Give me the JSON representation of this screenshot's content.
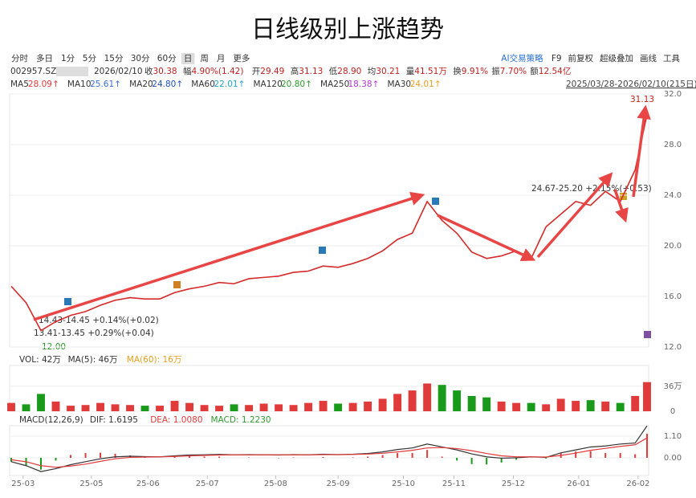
{
  "title": "日线级别上涨趋势",
  "toolbar": {
    "tabs": [
      "分时",
      "多日",
      "1分",
      "5分",
      "15分",
      "30分",
      "60分",
      "日",
      "周",
      "月",
      "更多"
    ],
    "active": 7,
    "tools": [
      "AI交易策略",
      "F9",
      "前复权",
      "超级叠加",
      "画线",
      "工具"
    ]
  },
  "info": {
    "code": "002957.SZ",
    "date": "2026/02/10",
    "items": [
      {
        "label": "收",
        "value": "30.38"
      },
      {
        "label": "幅",
        "value": "4.90%(1.42)"
      },
      {
        "label": "开",
        "value": "29.49"
      },
      {
        "label": "高",
        "value": "31.13"
      },
      {
        "label": "低",
        "value": "28.90"
      },
      {
        "label": "均",
        "value": "30.21"
      },
      {
        "label": "量",
        "value": "41.51万"
      },
      {
        "label": "换",
        "value": "9.91%"
      },
      {
        "label": "振",
        "value": "7.70%"
      },
      {
        "label": "额",
        "value": "12.54亿"
      }
    ],
    "ma": [
      {
        "name": "MA5",
        "value": "28.09↑",
        "color": "#e03a3a"
      },
      {
        "name": "MA10",
        "value": "25.61↑",
        "color": "#3a6fd8"
      },
      {
        "name": "MA20",
        "value": "24.80↑",
        "color": "#1f4fc0"
      },
      {
        "name": "MA60",
        "value": "22.01↑",
        "color": "#22a5c5"
      },
      {
        "name": "MA120",
        "value": "20.80↑",
        "color": "#2e9a2e"
      },
      {
        "name": "MA250",
        "value": "18.38↑",
        "color": "#b03ad0"
      },
      {
        "name": "MA30",
        "value": "24.01↑",
        "color": "#e8a020"
      }
    ],
    "range": "2025/03/28-2026/02/10(215日)"
  },
  "chart_data": [
    {
      "type": "line",
      "color": "#d42a2a",
      "x": [
        0,
        5,
        10,
        15,
        20,
        25,
        30,
        35,
        40,
        45,
        50,
        55,
        60,
        65,
        70,
        75,
        80,
        85,
        90,
        95,
        100,
        105,
        110,
        115,
        120,
        125,
        130,
        135,
        140,
        145,
        150,
        155,
        160,
        165,
        170,
        175,
        180,
        185,
        190,
        195,
        200,
        205,
        210,
        214
      ],
      "values": [
        16.8,
        15.5,
        13.3,
        14.0,
        14.5,
        14.8,
        15.3,
        15.7,
        15.9,
        15.8,
        15.8,
        16.3,
        16.6,
        16.8,
        17.1,
        17.0,
        17.4,
        17.5,
        17.6,
        17.9,
        18.0,
        18.4,
        18.3,
        18.6,
        19.0,
        19.6,
        20.5,
        21.0,
        23.5,
        22.0,
        21.0,
        19.5,
        19.0,
        19.2,
        19.6,
        19.0,
        21.5,
        22.5,
        23.5,
        23.2,
        24.3,
        23.5,
        26.0,
        30.38
      ],
      "xlim": [
        0,
        214
      ],
      "ylim": [
        12,
        32
      ],
      "yticks": [
        {
          "value": 12,
          "label": "12.0"
        },
        {
          "value": 16,
          "label": "16.0"
        },
        {
          "value": 20,
          "label": "20.0"
        },
        {
          "value": 24,
          "label": "24.0"
        },
        {
          "value": 28,
          "label": "28.0"
        },
        {
          "value": 32,
          "label": "32.0"
        }
      ],
      "xticks": [
        {
          "value": 4,
          "label": "25-03"
        },
        {
          "value": 27,
          "label": "25-05"
        },
        {
          "value": 46,
          "label": "25-06"
        },
        {
          "value": 66,
          "label": "25-07"
        },
        {
          "value": 89,
          "label": "25-08"
        },
        {
          "value": 110,
          "label": "25-09"
        },
        {
          "value": 132,
          "label": "25-10"
        },
        {
          "value": 149,
          "label": "25-11"
        },
        {
          "value": 169,
          "label": "25-12"
        },
        {
          "value": 191,
          "label": "26-01"
        },
        {
          "value": 211,
          "label": "26-02"
        }
      ],
      "annotations": [
        "31.13",
        "24.67-25.20 +2.15%(+0.53)",
        "14.43-14.45 +0.14%(+0.02)",
        "13.41-13.45 +0.29%(+0.04)",
        "12.00"
      ]
    },
    {
      "type": "bar",
      "header": [
        "VOL: 42万",
        "MA(5): 46万",
        "MA(60): 16万"
      ],
      "color": "#1a9a1a",
      "up_color": "#e03a3a",
      "x": [
        0,
        5,
        10,
        15,
        20,
        25,
        30,
        35,
        40,
        45,
        50,
        55,
        60,
        65,
        70,
        75,
        80,
        85,
        90,
        95,
        100,
        105,
        110,
        115,
        120,
        125,
        130,
        135,
        140,
        145,
        150,
        155,
        160,
        165,
        170,
        175,
        180,
        185,
        190,
        195,
        200,
        205,
        210,
        214
      ],
      "values": [
        12,
        10,
        25,
        14,
        8,
        9,
        12,
        10,
        9,
        8,
        8,
        15,
        12,
        9,
        8,
        10,
        9,
        11,
        10,
        9,
        12,
        15,
        11,
        12,
        14,
        18,
        25,
        30,
        40,
        38,
        30,
        22,
        20,
        14,
        12,
        12,
        10,
        18,
        15,
        16,
        14,
        12,
        22,
        42
      ],
      "xlim": [
        0,
        214
      ],
      "ylim": [
        0,
        66
      ],
      "yticks": [
        0,
        {
          "value": 36,
          "label": "36万"
        }
      ]
    },
    {
      "type": "macd",
      "header": [
        "MACD(12,26,9)",
        "DIF: 1.6195",
        "DEA: 1.0080",
        "MACD: 1.2230"
      ],
      "x": [
        0,
        5,
        10,
        15,
        20,
        25,
        30,
        35,
        40,
        45,
        50,
        55,
        60,
        65,
        70,
        75,
        80,
        85,
        90,
        95,
        100,
        105,
        110,
        115,
        120,
        125,
        130,
        135,
        140,
        145,
        150,
        155,
        160,
        165,
        170,
        175,
        180,
        185,
        190,
        195,
        200,
        205,
        210,
        214
      ],
      "series": [
        {
          "color": "#333333",
          "values": [
            -0.2,
            -0.4,
            -0.7,
            -0.55,
            -0.35,
            -0.2,
            -0.05,
            0.05,
            0.08,
            0.06,
            0.05,
            0.1,
            0.14,
            0.15,
            0.17,
            0.15,
            0.16,
            0.15,
            0.14,
            0.16,
            0.15,
            0.18,
            0.16,
            0.18,
            0.22,
            0.3,
            0.42,
            0.5,
            0.7,
            0.55,
            0.4,
            0.2,
            0.05,
            -0.02,
            0.0,
            0.05,
            0.02,
            0.25,
            0.4,
            0.55,
            0.6,
            0.7,
            0.75,
            1.62
          ]
        },
        {
          "color": "#e03a3a",
          "values": [
            -0.1,
            -0.2,
            -0.4,
            -0.48,
            -0.42,
            -0.32,
            -0.18,
            -0.05,
            0.02,
            0.04,
            0.05,
            0.07,
            0.1,
            0.12,
            0.14,
            0.15,
            0.15,
            0.15,
            0.15,
            0.15,
            0.15,
            0.16,
            0.16,
            0.17,
            0.19,
            0.23,
            0.3,
            0.38,
            0.5,
            0.52,
            0.47,
            0.36,
            0.22,
            0.1,
            0.05,
            0.05,
            0.04,
            0.12,
            0.24,
            0.38,
            0.48,
            0.58,
            0.66,
            1.01
          ]
        }
      ],
      "bars": {
        "up_color": "#e03a3a",
        "down_color": "#1a9a1a",
        "values": [
          -0.2,
          -0.4,
          -0.6,
          -0.14,
          0.14,
          0.24,
          0.26,
          0.2,
          0.12,
          0.04,
          0,
          0.06,
          0.08,
          0.06,
          0.06,
          0,
          0.02,
          0,
          -0.02,
          0.02,
          0,
          0.04,
          0,
          0.02,
          0.06,
          0.14,
          0.24,
          0.24,
          0.4,
          0.06,
          -0.14,
          -0.32,
          -0.34,
          -0.24,
          -0.1,
          0,
          -0.04,
          0.26,
          0.32,
          0.34,
          0.24,
          0.24,
          0.18,
          1.22
        ]
      },
      "xlim": [
        0,
        214
      ],
      "ylim": [
        -0.9,
        1.63
      ],
      "yticks": [
        {
          "value": 0,
          "label": "0.00"
        },
        {
          "value": 1.1,
          "label": "1.10"
        }
      ]
    }
  ]
}
